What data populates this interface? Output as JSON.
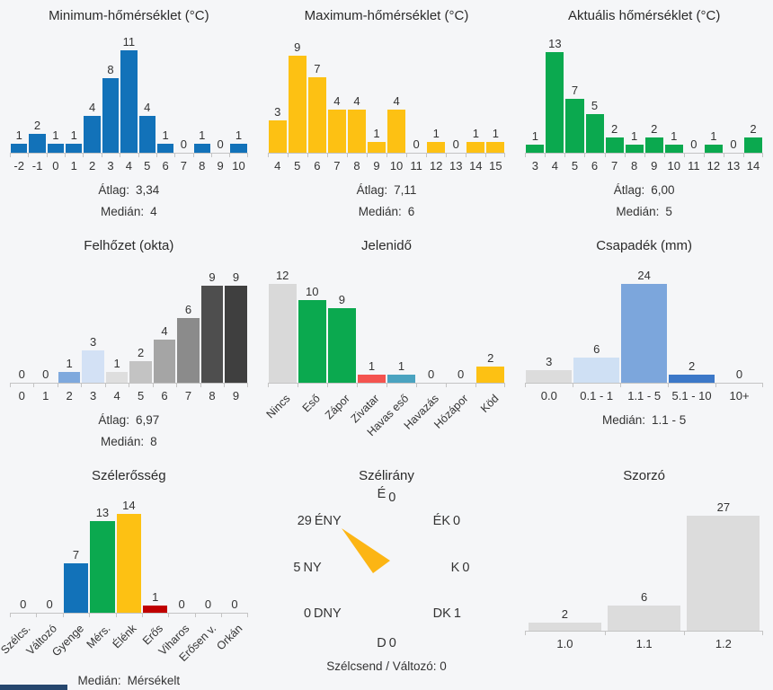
{
  "page": {
    "background": "#f5f6f8",
    "bottom_bar_color": "#26476e"
  },
  "chart_data": [
    {
      "id": "min-temp",
      "type": "bar",
      "title": "Minimum-hőmérséklet (°C)",
      "categories": [
        "-2",
        "-1",
        "0",
        "1",
        "2",
        "3",
        "4",
        "5",
        "6",
        "7",
        "8",
        "9",
        "10"
      ],
      "values": [
        1,
        2,
        1,
        1,
        4,
        8,
        11,
        4,
        1,
        0,
        1,
        0,
        1
      ],
      "bar_color": "#1272b9",
      "stats": [
        {
          "label": "Átlag:",
          "value": "3,34"
        },
        {
          "label": "Medián:",
          "value": "4"
        }
      ]
    },
    {
      "id": "max-temp",
      "type": "bar",
      "title": "Maximum-hőmérséklet (°C)",
      "categories": [
        "4",
        "5",
        "6",
        "7",
        "8",
        "9",
        "10",
        "11",
        "12",
        "13",
        "14",
        "15"
      ],
      "values": [
        3,
        9,
        7,
        4,
        4,
        1,
        4,
        0,
        1,
        0,
        1,
        1
      ],
      "bar_color": "#fdc113",
      "stats": [
        {
          "label": "Átlag:",
          "value": "7,11"
        },
        {
          "label": "Medián:",
          "value": "6"
        }
      ]
    },
    {
      "id": "current-temp",
      "type": "bar",
      "title": "Aktuális hőmérséklet (°C)",
      "categories": [
        "3",
        "4",
        "5",
        "6",
        "7",
        "8",
        "9",
        "10",
        "11",
        "12",
        "13",
        "14"
      ],
      "values": [
        1,
        13,
        7,
        5,
        2,
        1,
        2,
        1,
        0,
        1,
        0,
        2
      ],
      "bar_color": "#0ba94f",
      "stats": [
        {
          "label": "Átlag:",
          "value": "6,00"
        },
        {
          "label": "Medián:",
          "value": "5"
        }
      ]
    },
    {
      "id": "cloud-cover",
      "type": "bar",
      "title": "Felhőzet (okta)",
      "categories": [
        "0",
        "1",
        "2",
        "3",
        "4",
        "5",
        "6",
        "7",
        "8",
        "9"
      ],
      "values": [
        0,
        0,
        1,
        3,
        1,
        2,
        4,
        6,
        9,
        9
      ],
      "bar_colors": [
        "#d9d9d9",
        "#d9d9d9",
        "#7fa9dd",
        "#d3e1f5",
        "#dedede",
        "#c3c3c3",
        "#a5a5a5",
        "#8b8b8b",
        "#4e4e4e",
        "#3f3f3f"
      ],
      "stats": [
        {
          "label": "Átlag:",
          "value": "6,97"
        },
        {
          "label": "Medián:",
          "value": "8"
        }
      ]
    },
    {
      "id": "present-weather",
      "type": "bar",
      "title": "Jelenidő",
      "categories": [
        "Nincs",
        "Eső",
        "Zápor",
        "Zivatar",
        "Havas eső",
        "Havazás",
        "Hózápor",
        "Köd"
      ],
      "values": [
        12,
        10,
        9,
        1,
        1,
        0,
        0,
        2
      ],
      "bar_colors": [
        "#d9d9d9",
        "#0ba94f",
        "#0ba94f",
        "#f4534f",
        "#4aa3c0",
        "#d9d9d9",
        "#d9d9d9",
        "#fdc113"
      ],
      "rotate_labels": true,
      "stats": []
    },
    {
      "id": "precipitation",
      "type": "bar",
      "title": "Csapadék (mm)",
      "categories": [
        "0.0",
        "0.1 - 1",
        "1.1 - 5",
        "5.1 - 10",
        "10+"
      ],
      "values": [
        3,
        6,
        24,
        2,
        0
      ],
      "bar_colors": [
        "#dcdcdc",
        "#cfe0f4",
        "#7ca6dc",
        "#3c78c8",
        "#dcdcdc"
      ],
      "stats": [
        {
          "label": "Medián:",
          "value": "1.1 - 5"
        }
      ]
    },
    {
      "id": "wind-strength",
      "type": "bar",
      "title": "Szélerősség",
      "categories": [
        "Szélcs.",
        "Változó",
        "Gyenge",
        "Mérs.",
        "Élénk",
        "Erős",
        "Viharos",
        "Erősen v.",
        "Orkán"
      ],
      "values": [
        0,
        0,
        7,
        13,
        14,
        1,
        0,
        0,
        0
      ],
      "bar_colors": [
        "#d9d9d9",
        "#d9d9d9",
        "#1272b9",
        "#0ba94f",
        "#fdc113",
        "#c00000",
        "#d9d9d9",
        "#d9d9d9",
        "#d9d9d9"
      ],
      "rotate_labels": true,
      "stats": [
        {
          "label": "Medián:",
          "value": "Mérsékelt"
        }
      ]
    },
    {
      "id": "wind-direction",
      "type": "compass",
      "title": "Szélirány",
      "needle_color": "#fcb514",
      "needle_direction": "ÉNY",
      "directions": [
        {
          "dir": "É",
          "value": "0",
          "position": "n"
        },
        {
          "dir": "ÉK",
          "value": "0",
          "position": "ne"
        },
        {
          "dir": "K",
          "value": "0",
          "position": "e"
        },
        {
          "dir": "DK",
          "value": "1",
          "position": "se"
        },
        {
          "dir": "D",
          "value": "0",
          "position": "s"
        },
        {
          "dir": "DNY",
          "value": "0",
          "position": "sw"
        },
        {
          "dir": "NY",
          "value": "5",
          "position": "w"
        },
        {
          "dir": "ÉNY",
          "value": "29",
          "position": "nw"
        }
      ],
      "footer": "Szélcsend / Változó: 0"
    },
    {
      "id": "multiplier",
      "type": "bar",
      "title": "Szorzó",
      "categories": [
        "1.0",
        "1.1",
        "1.2"
      ],
      "values": [
        2,
        6,
        27
      ],
      "bar_color": "#dcdcdc",
      "stats": []
    }
  ]
}
